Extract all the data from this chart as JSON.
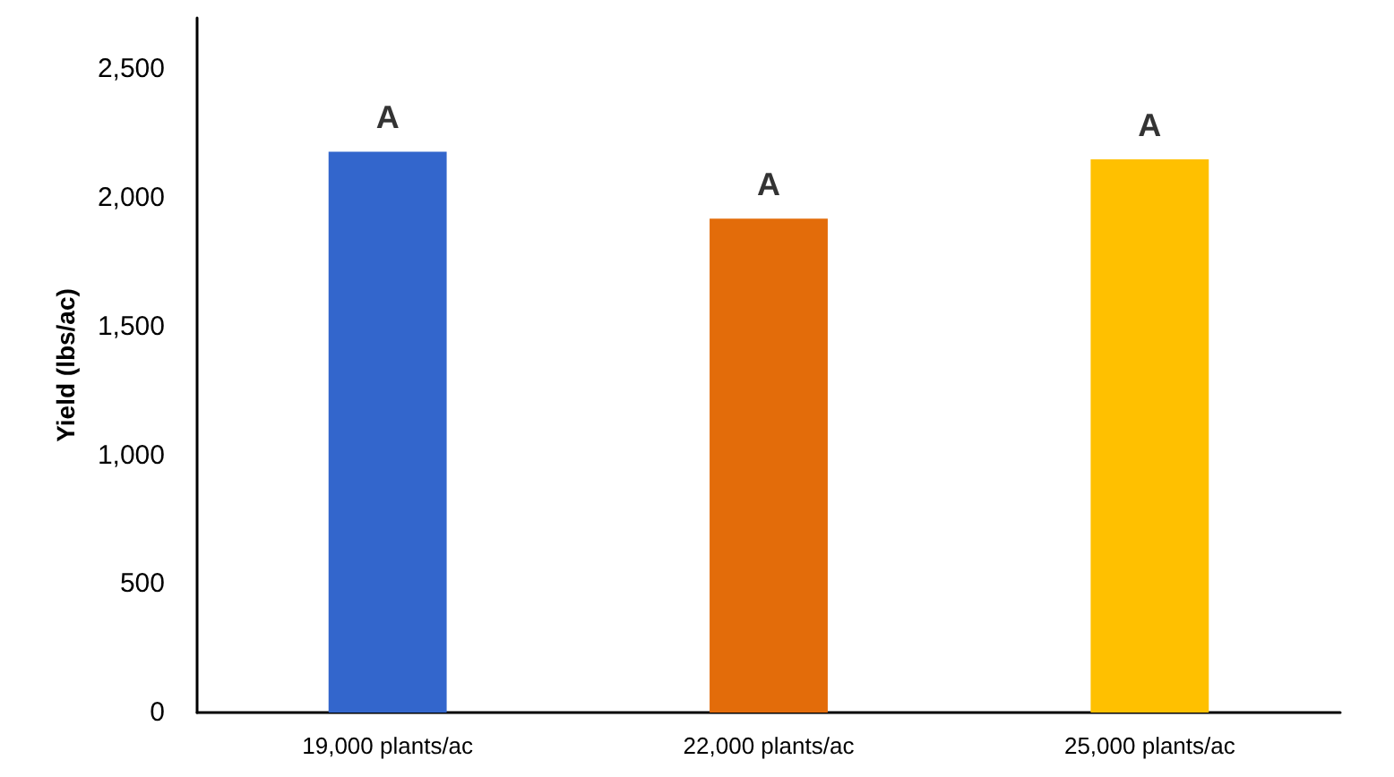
{
  "chart_data": {
    "type": "bar",
    "ylabel": "Yield (lbs/ac)",
    "categories": [
      "19,000 plants/ac",
      "22,000 plants/ac",
      "25,000 plants/ac"
    ],
    "values": [
      2180,
      1920,
      2150
    ],
    "colors": [
      "#3366cc",
      "#e36c0a",
      "#ffc000"
    ],
    "ylim": [
      0,
      2700
    ],
    "yticks": [
      0,
      500,
      {
        "value": 1000,
        "label": "1,000"
      },
      {
        "value": 1500,
        "label": "1,500"
      },
      {
        "value": 2000,
        "label": "2,000"
      },
      {
        "value": 2500,
        "label": "2,500"
      }
    ],
    "grid": false,
    "annotations": [
      {
        "text": "A",
        "x": "19,000 plants/ac",
        "y": 2180
      },
      {
        "text": "A",
        "x": "22,000 plants/ac",
        "y": 1920
      },
      {
        "text": "A",
        "x": "25,000 plants/ac",
        "y": 2150
      }
    ]
  }
}
